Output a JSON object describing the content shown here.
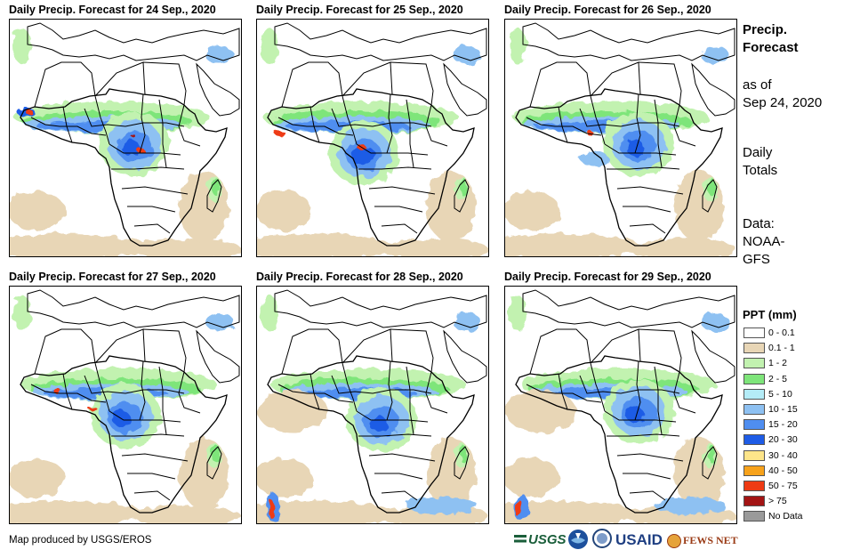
{
  "panels": [
    {
      "title": "Daily Precip. Forecast for 24  Sep., 2020"
    },
    {
      "title": "Daily Precip. Forecast for 25  Sep., 2020"
    },
    {
      "title": "Daily Precip. Forecast for 26  Sep., 2020"
    },
    {
      "title": "Daily Precip. Forecast for 27  Sep., 2020"
    },
    {
      "title": "Daily Precip. Forecast for 28  Sep., 2020"
    },
    {
      "title": "Daily Precip. Forecast for 29  Sep., 2020"
    }
  ],
  "sidebar": {
    "title_line1": "Precip.",
    "title_line2": "Forecast",
    "asof_line1": "as of",
    "asof_line2": "Sep 24, 2020",
    "totals_line1": "Daily",
    "totals_line2": "Totals",
    "source_line1": "Data:",
    "source_line2": "NOAA-",
    "source_line3": "GFS"
  },
  "legend": {
    "title": "PPT (mm)",
    "items": [
      {
        "label": "0 - 0.1",
        "color": "#ffffff"
      },
      {
        "label": "0.1 - 1",
        "color": "#e8d6b6"
      },
      {
        "label": "1 - 2",
        "color": "#c2f2b0"
      },
      {
        "label": "2 - 5",
        "color": "#7ee57a"
      },
      {
        "label": "5 - 10",
        "color": "#b4ecf7"
      },
      {
        "label": "10 - 15",
        "color": "#8ec1f2"
      },
      {
        "label": "15 - 20",
        "color": "#4f8ef0"
      },
      {
        "label": "20 - 30",
        "color": "#1e5ce6"
      },
      {
        "label": "30 - 40",
        "color": "#fde58a"
      },
      {
        "label": "40 - 50",
        "color": "#f7a21b"
      },
      {
        "label": "50 - 75",
        "color": "#ee3b14"
      },
      {
        "label": "> 75",
        "color": "#a31414"
      },
      {
        "label": "No Data",
        "color": "#9a9a9a"
      }
    ]
  },
  "footer": {
    "credit": "Map produced by USGS/EROS",
    "logo_usgs": "USGS",
    "logo_usaid": "USAID",
    "logo_fews": "FEWS NET"
  }
}
